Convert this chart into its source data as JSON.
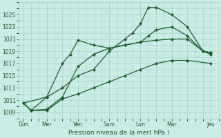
{
  "background_color": "#cceae6",
  "grid_color": "#aad4cf",
  "line_color": "#1a5c2a",
  "text_color": "#1a5c2a",
  "xlabel": "Pression niveau de la mer( hPa )",
  "ylim": [
    1008,
    1027
  ],
  "yticks": [
    1009,
    1011,
    1013,
    1015,
    1017,
    1019,
    1021,
    1023,
    1025
  ],
  "series": [
    {
      "x": [
        0,
        0.5,
        1.5,
        2.5,
        3.5,
        4.5,
        5.5,
        6.5,
        7.5,
        8.5,
        9.5,
        10.5,
        12.0
      ],
      "y": [
        1010.5,
        1009.3,
        1009.3,
        1011.2,
        1012.0,
        1013.0,
        1014.0,
        1015.0,
        1016.0,
        1017.0,
        1017.5,
        1017.5,
        1017.0
      ],
      "marker": "D",
      "ms": 2.0,
      "lw": 0.9
    },
    {
      "x": [
        0,
        0.5,
        1.5,
        2.5,
        3.5,
        4.5,
        5.5,
        6.5,
        7.5,
        8.5,
        9.5,
        10.5,
        11.5,
        12.0
      ],
      "y": [
        1010.5,
        1009.3,
        1009.5,
        1011.5,
        1016.5,
        1018.5,
        1019.5,
        1020.0,
        1020.5,
        1020.8,
        1021.0,
        1021.0,
        1019.0,
        1018.5
      ],
      "marker": "D",
      "ms": 2.0,
      "lw": 0.9
    },
    {
      "x": [
        0,
        0.5,
        1.5,
        2.5,
        3.0,
        3.5,
        4.5,
        5.5,
        6.5,
        7.5,
        8.0,
        8.5,
        9.5,
        10.5,
        11.5,
        12.0
      ],
      "y": [
        1010.5,
        1009.3,
        1011.5,
        1017.0,
        1018.5,
        1020.8,
        1020.0,
        1019.5,
        1020.0,
        1020.5,
        1021.5,
        1022.5,
        1023.0,
        1021.5,
        1019.0,
        1018.8
      ],
      "marker": "D",
      "ms": 2.0,
      "lw": 0.9
    },
    {
      "x": [
        0,
        1.5,
        2.5,
        3.5,
        4.5,
        5.5,
        6.5,
        7.0,
        7.5,
        8.0,
        8.5,
        9.5,
        10.5,
        11.5,
        12.0
      ],
      "y": [
        1010.5,
        1011.5,
        1013.0,
        1015.0,
        1016.0,
        1019.0,
        1021.0,
        1022.0,
        1023.5,
        1026.2,
        1026.2,
        1025.0,
        1023.0,
        1019.0,
        1018.8
      ],
      "marker": "D",
      "ms": 2.0,
      "lw": 0.9
    }
  ],
  "xtick_positions": [
    0,
    1.5,
    3.5,
    5.5,
    7.5,
    9.5,
    12.0
  ],
  "xtick_labels": [
    "Dim",
    "Mer",
    "Ven",
    "Sam",
    "Lun",
    "Mar",
    "Jeu"
  ],
  "major_vlines": [
    1.5,
    5.5,
    7.5,
    9.5,
    12.0
  ]
}
